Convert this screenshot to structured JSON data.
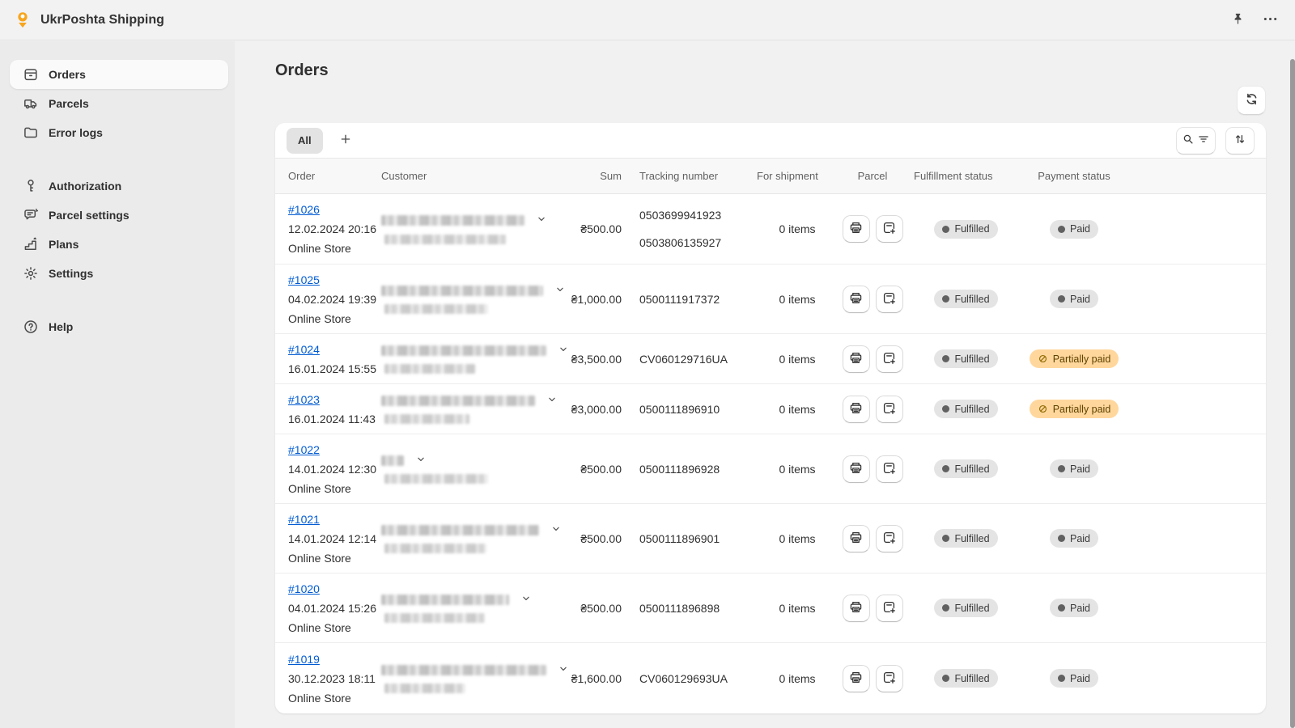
{
  "app": {
    "title": "UkrPoshta Shipping"
  },
  "topbar": {
    "pin_icon": "pushpin-icon",
    "menu_icon": "ellipsis-icon"
  },
  "sidebar": {
    "groups": [
      {
        "items": [
          {
            "id": "orders",
            "label": "Orders",
            "icon": "orders-box-icon",
            "active": true
          },
          {
            "id": "parcels",
            "label": "Parcels",
            "icon": "truck-icon",
            "active": false
          },
          {
            "id": "error-logs",
            "label": "Error logs",
            "icon": "folder-icon",
            "active": false
          }
        ]
      },
      {
        "items": [
          {
            "id": "authorization",
            "label": "Authorization",
            "icon": "key-icon",
            "active": false
          },
          {
            "id": "parcel-settings",
            "label": "Parcel settings",
            "icon": "chat-settings-icon",
            "active": false
          },
          {
            "id": "plans",
            "label": "Plans",
            "icon": "stairs-icon",
            "active": false
          },
          {
            "id": "settings",
            "label": "Settings",
            "icon": "gear-icon",
            "active": false
          }
        ]
      },
      {
        "items": [
          {
            "id": "help",
            "label": "Help",
            "icon": "question-icon",
            "active": false
          }
        ]
      }
    ]
  },
  "main": {
    "title": "Orders"
  },
  "tabs": {
    "items": [
      {
        "label": "All",
        "active": true
      }
    ]
  },
  "table": {
    "columns": [
      "Order",
      "Customer",
      "Sum",
      "Tracking number",
      "For shipment",
      "Parcel",
      "Fulfillment status",
      "Payment status"
    ],
    "rows": [
      {
        "order": "#1026",
        "date": "12.02.2024 20:16",
        "channel": "Online Store",
        "customer_blur": [
          177,
          150
        ],
        "sum": "₴500.00",
        "tracking": [
          "0503699941923",
          "0503806135927"
        ],
        "shipment": "0 items",
        "fulfillment": "Fulfilled",
        "payment": "Paid",
        "payment_status": "paid"
      },
      {
        "order": "#1025",
        "date": "04.02.2024 19:39",
        "channel": "Online Store",
        "customer_blur": [
          200,
          128
        ],
        "sum": "₴1,000.00",
        "tracking": [
          "0500111917372"
        ],
        "shipment": "0 items",
        "fulfillment": "Fulfilled",
        "payment": "Paid",
        "payment_status": "paid"
      },
      {
        "order": "#1024",
        "date": "16.01.2024 15:55",
        "channel": null,
        "customer_blur": [
          205,
          112
        ],
        "sum": "₴3,500.00",
        "tracking": [
          "CV060129716UA"
        ],
        "shipment": "0 items",
        "fulfillment": "Fulfilled",
        "payment": "Partially paid",
        "payment_status": "partially_paid"
      },
      {
        "order": "#1023",
        "date": "16.01.2024 11:43",
        "channel": null,
        "customer_blur": [
          190,
          105
        ],
        "sum": "₴3,000.00",
        "tracking": [
          "0500111896910"
        ],
        "shipment": "0 items",
        "fulfillment": "Fulfilled",
        "payment": "Partially paid",
        "payment_status": "partially_paid"
      },
      {
        "order": "#1022",
        "date": "14.01.2024 12:30",
        "channel": "Online Store",
        "customer_blur": [
          28,
          128
        ],
        "sum": "₴500.00",
        "tracking": [
          "0500111896928"
        ],
        "shipment": "0 items",
        "fulfillment": "Fulfilled",
        "payment": "Paid",
        "payment_status": "paid"
      },
      {
        "order": "#1021",
        "date": "14.01.2024 12:14",
        "channel": "Online Store",
        "customer_blur": [
          195,
          126
        ],
        "sum": "₴500.00",
        "tracking": [
          "0500111896901"
        ],
        "shipment": "0 items",
        "fulfillment": "Fulfilled",
        "payment": "Paid",
        "payment_status": "paid"
      },
      {
        "order": "#1020",
        "date": "04.01.2024 15:26",
        "channel": "Online Store",
        "customer_blur": [
          158,
          124
        ],
        "sum": "₴500.00",
        "tracking": [
          "0500111896898"
        ],
        "shipment": "0 items",
        "fulfillment": "Fulfilled",
        "payment": "Paid",
        "payment_status": "paid"
      },
      {
        "order": "#1019",
        "date": "30.12.2023 18:11",
        "channel": "Online Store",
        "customer_blur": [
          205,
          100
        ],
        "sum": "₴1,600.00",
        "tracking": [
          "CV060129693UA"
        ],
        "shipment": "0 items",
        "fulfillment": "Fulfilled",
        "payment": "Paid",
        "payment_status": "paid"
      }
    ]
  },
  "colors": {
    "brand_orange": "#f7a51d",
    "accent_link": "#005bd3",
    "badge_neutral_bg": "#e4e4e4",
    "badge_warning_bg": "#ffd79d",
    "badge_warning_text": "#5e4200"
  }
}
